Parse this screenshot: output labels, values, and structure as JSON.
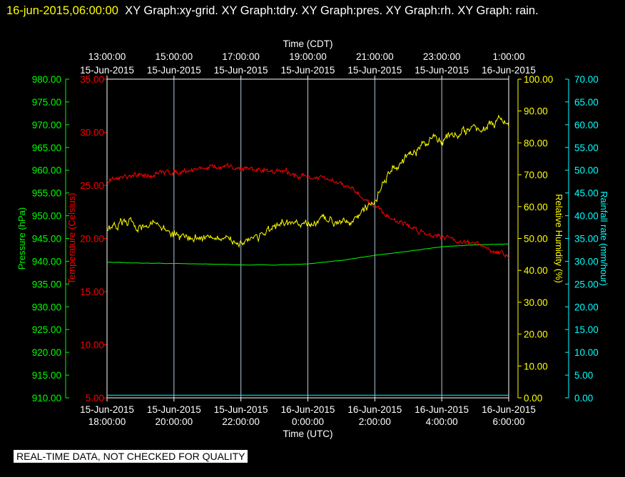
{
  "header": {
    "timestamp": "16-jun-2015,06:00:00",
    "text": "XY Graph:xy-grid.  XY Graph:tdry.  XY Graph:pres.  XY Graph:rh.  XY Graph: rain."
  },
  "footer": {
    "note": "REAL-TIME DATA, NOT CHECKED FOR QUALITY"
  },
  "colors": {
    "pressure": "#00ff00",
    "temperature": "#ff0000",
    "humidity": "#ffff00",
    "rainfall": "#00ffff",
    "grid": "#b4c8dc",
    "frame": "#ffffff",
    "background": "#000000"
  },
  "chart_data": {
    "type": "line",
    "grid": true,
    "x_range_hours_utc": [
      18,
      30
    ],
    "top_axis": {
      "title": "Time (CDT)",
      "ticks": [
        {
          "time": "13:00:00",
          "date": "15-Jun-2015"
        },
        {
          "time": "15:00:00",
          "date": "15-Jun-2015"
        },
        {
          "time": "17:00:00",
          "date": "15-Jun-2015"
        },
        {
          "time": "19:00:00",
          "date": "15-Jun-2015"
        },
        {
          "time": "21:00:00",
          "date": "15-Jun-2015"
        },
        {
          "time": "23:00:00",
          "date": "15-Jun-2015"
        },
        {
          "time": "1:00:00",
          "date": "16-Jun-2015"
        }
      ]
    },
    "bottom_axis": {
      "title": "Time (UTC)",
      "ticks": [
        {
          "date": "15-Jun-2015",
          "time": "18:00:00"
        },
        {
          "date": "15-Jun-2015",
          "time": "20:00:00"
        },
        {
          "date": "15-Jun-2015",
          "time": "22:00:00"
        },
        {
          "date": "16-Jun-2015",
          "time": "0:00:00"
        },
        {
          "date": "16-Jun-2015",
          "time": "2:00:00"
        },
        {
          "date": "16-Jun-2015",
          "time": "4:00:00"
        },
        {
          "date": "16-Jun-2015",
          "time": "6:00:00"
        }
      ]
    },
    "axes": {
      "pressure": {
        "label": "Pressure (hPa)",
        "range": [
          910,
          980
        ],
        "ticks": [
          "980.00",
          "975.00",
          "970.00",
          "965.00",
          "960.00",
          "955.00",
          "950.00",
          "945.00",
          "940.00",
          "935.00",
          "930.00",
          "925.00",
          "920.00",
          "915.00",
          "910.00"
        ]
      },
      "temperature": {
        "label": "Temperature (Celsius)",
        "range": [
          5,
          35
        ],
        "ticks": [
          "35.00",
          "30.00",
          "25.00",
          "20.00",
          "15.00",
          "10.00",
          "5.00"
        ]
      },
      "humidity": {
        "label": "Relative Humidity (%)",
        "range": [
          0,
          102
        ],
        "ticks": [
          "100.00",
          "90.00",
          "80.00",
          "70.00",
          "60.00",
          "50.00",
          "40.00",
          "30.00",
          "20.00",
          "10.00",
          "0.00"
        ]
      },
      "rainfall": {
        "label": "Rainfall rate (mm/hour)",
        "range": [
          0,
          70
        ],
        "ticks": [
          "70.00",
          "65.00",
          "60.00",
          "55.00",
          "50.00",
          "45.00",
          "40.00",
          "35.00",
          "30.00",
          "25.00",
          "20.00",
          "15.00",
          "10.00",
          "5.00",
          "0.00"
        ]
      }
    },
    "series": [
      {
        "name": "pres",
        "axis": "pressure",
        "noise": 0.05,
        "x": [
          18,
          19,
          20,
          21,
          22,
          23,
          24,
          25,
          26,
          27,
          28,
          29,
          30
        ],
        "y": [
          939.8,
          939.6,
          939.5,
          939.4,
          939.2,
          939.2,
          939.4,
          940.2,
          941.3,
          942.2,
          943.2,
          943.6,
          943.8
        ]
      },
      {
        "name": "tdry",
        "axis": "temperature",
        "noise": 0.35,
        "x": [
          18,
          19,
          20,
          21,
          22,
          23,
          24,
          24.5,
          25,
          25.5,
          26,
          26.5,
          27,
          27.5,
          28,
          28.5,
          29,
          29.5,
          30
        ],
        "y": [
          25.5,
          25.9,
          26.3,
          26.7,
          26.6,
          26.4,
          25.8,
          25.6,
          25.1,
          24.2,
          23.1,
          21.9,
          21.2,
          20.5,
          20.3,
          19.8,
          19.5,
          18.8,
          18.4
        ]
      },
      {
        "name": "rh",
        "axis": "humidity",
        "noise": 1.8,
        "x": [
          18,
          18.5,
          19,
          19.5,
          20,
          20.5,
          21,
          21.5,
          22,
          22.5,
          23,
          23.5,
          24,
          24.5,
          25,
          25.5,
          26,
          26.2,
          26.5,
          26.8,
          27,
          27.5,
          27.8,
          28,
          28.3,
          28.6,
          29,
          29.5,
          29.8,
          30
        ],
        "y": [
          54,
          56,
          55,
          56,
          52,
          51,
          52,
          50,
          50,
          52,
          54,
          56,
          55,
          57,
          57,
          58,
          63,
          68,
          73,
          75,
          77,
          81,
          84,
          83,
          84,
          85,
          86,
          87.5,
          88.5,
          88
        ]
      },
      {
        "name": "rain",
        "axis": "rainfall",
        "noise": 0,
        "x": [
          18,
          30
        ],
        "y": [
          0.6,
          0.6
        ]
      }
    ]
  }
}
